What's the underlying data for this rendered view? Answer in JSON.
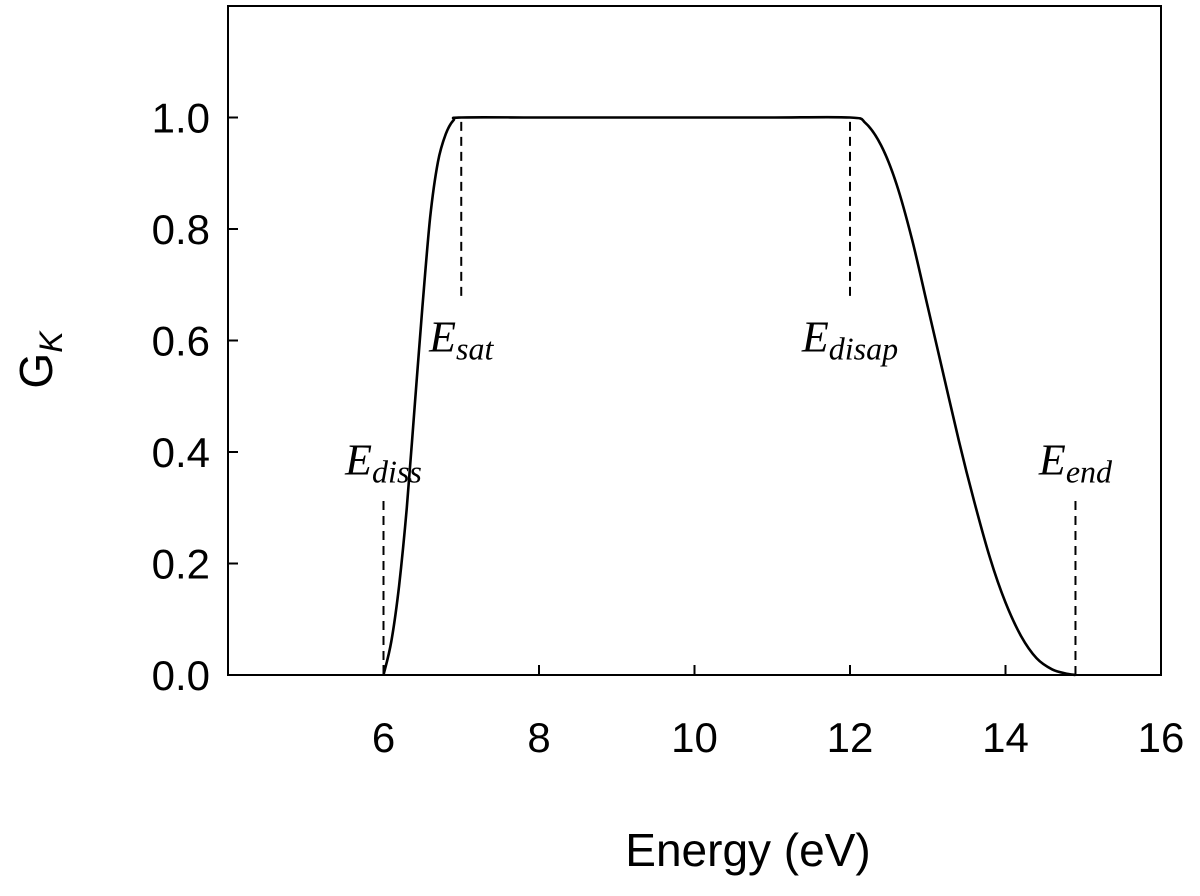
{
  "chart_data": {
    "type": "line",
    "title": "",
    "xlabel": "Energy (eV)",
    "ylabel": {
      "main": "G",
      "sub": "K"
    },
    "xlim": [
      4,
      16
    ],
    "ylim": [
      0,
      1.2
    ],
    "xticks": [
      6,
      8,
      10,
      12,
      14,
      16
    ],
    "yticks": [
      0.0,
      0.2,
      0.4,
      0.6,
      0.8,
      1.0
    ],
    "ytick_labels": [
      "0.0",
      "0.2",
      "0.4",
      "0.6",
      "0.8",
      "1.0"
    ],
    "grid": false,
    "legend": "none",
    "line_color": "#000000",
    "series": [
      {
        "x": [
          6.0,
          6.1,
          6.2,
          6.3,
          6.4,
          6.5,
          6.6,
          6.7,
          6.8,
          6.9,
          7.0,
          8.0,
          9.0,
          10.0,
          11.0,
          12.0,
          12.2,
          12.4,
          12.6,
          12.8,
          13.0,
          13.2,
          13.4,
          13.6,
          13.8,
          14.0,
          14.2,
          14.4,
          14.6,
          14.8,
          14.9
        ],
        "y": [
          0.0,
          0.06,
          0.16,
          0.3,
          0.48,
          0.66,
          0.82,
          0.92,
          0.97,
          0.995,
          1.0,
          1.0,
          1.0,
          1.0,
          1.0,
          1.0,
          0.99,
          0.95,
          0.88,
          0.78,
          0.66,
          0.54,
          0.42,
          0.31,
          0.21,
          0.13,
          0.07,
          0.03,
          0.01,
          0.002,
          0.0
        ]
      }
    ],
    "markers": [
      {
        "x": 6.0,
        "y0": 0.0,
        "y1": 0.32,
        "label": "E",
        "sub": "diss",
        "label_y": 0.36
      },
      {
        "x": 7.0,
        "y0": 0.68,
        "y1": 1.0,
        "label": "E",
        "sub": "sat",
        "label_y": 0.58
      },
      {
        "x": 12.0,
        "y0": 0.68,
        "y1": 1.0,
        "label": "E",
        "sub": "disap",
        "label_y": 0.58
      },
      {
        "x": 14.9,
        "y0": 0.0,
        "y1": 0.32,
        "label": "E",
        "sub": "end",
        "label_y": 0.36
      }
    ]
  }
}
